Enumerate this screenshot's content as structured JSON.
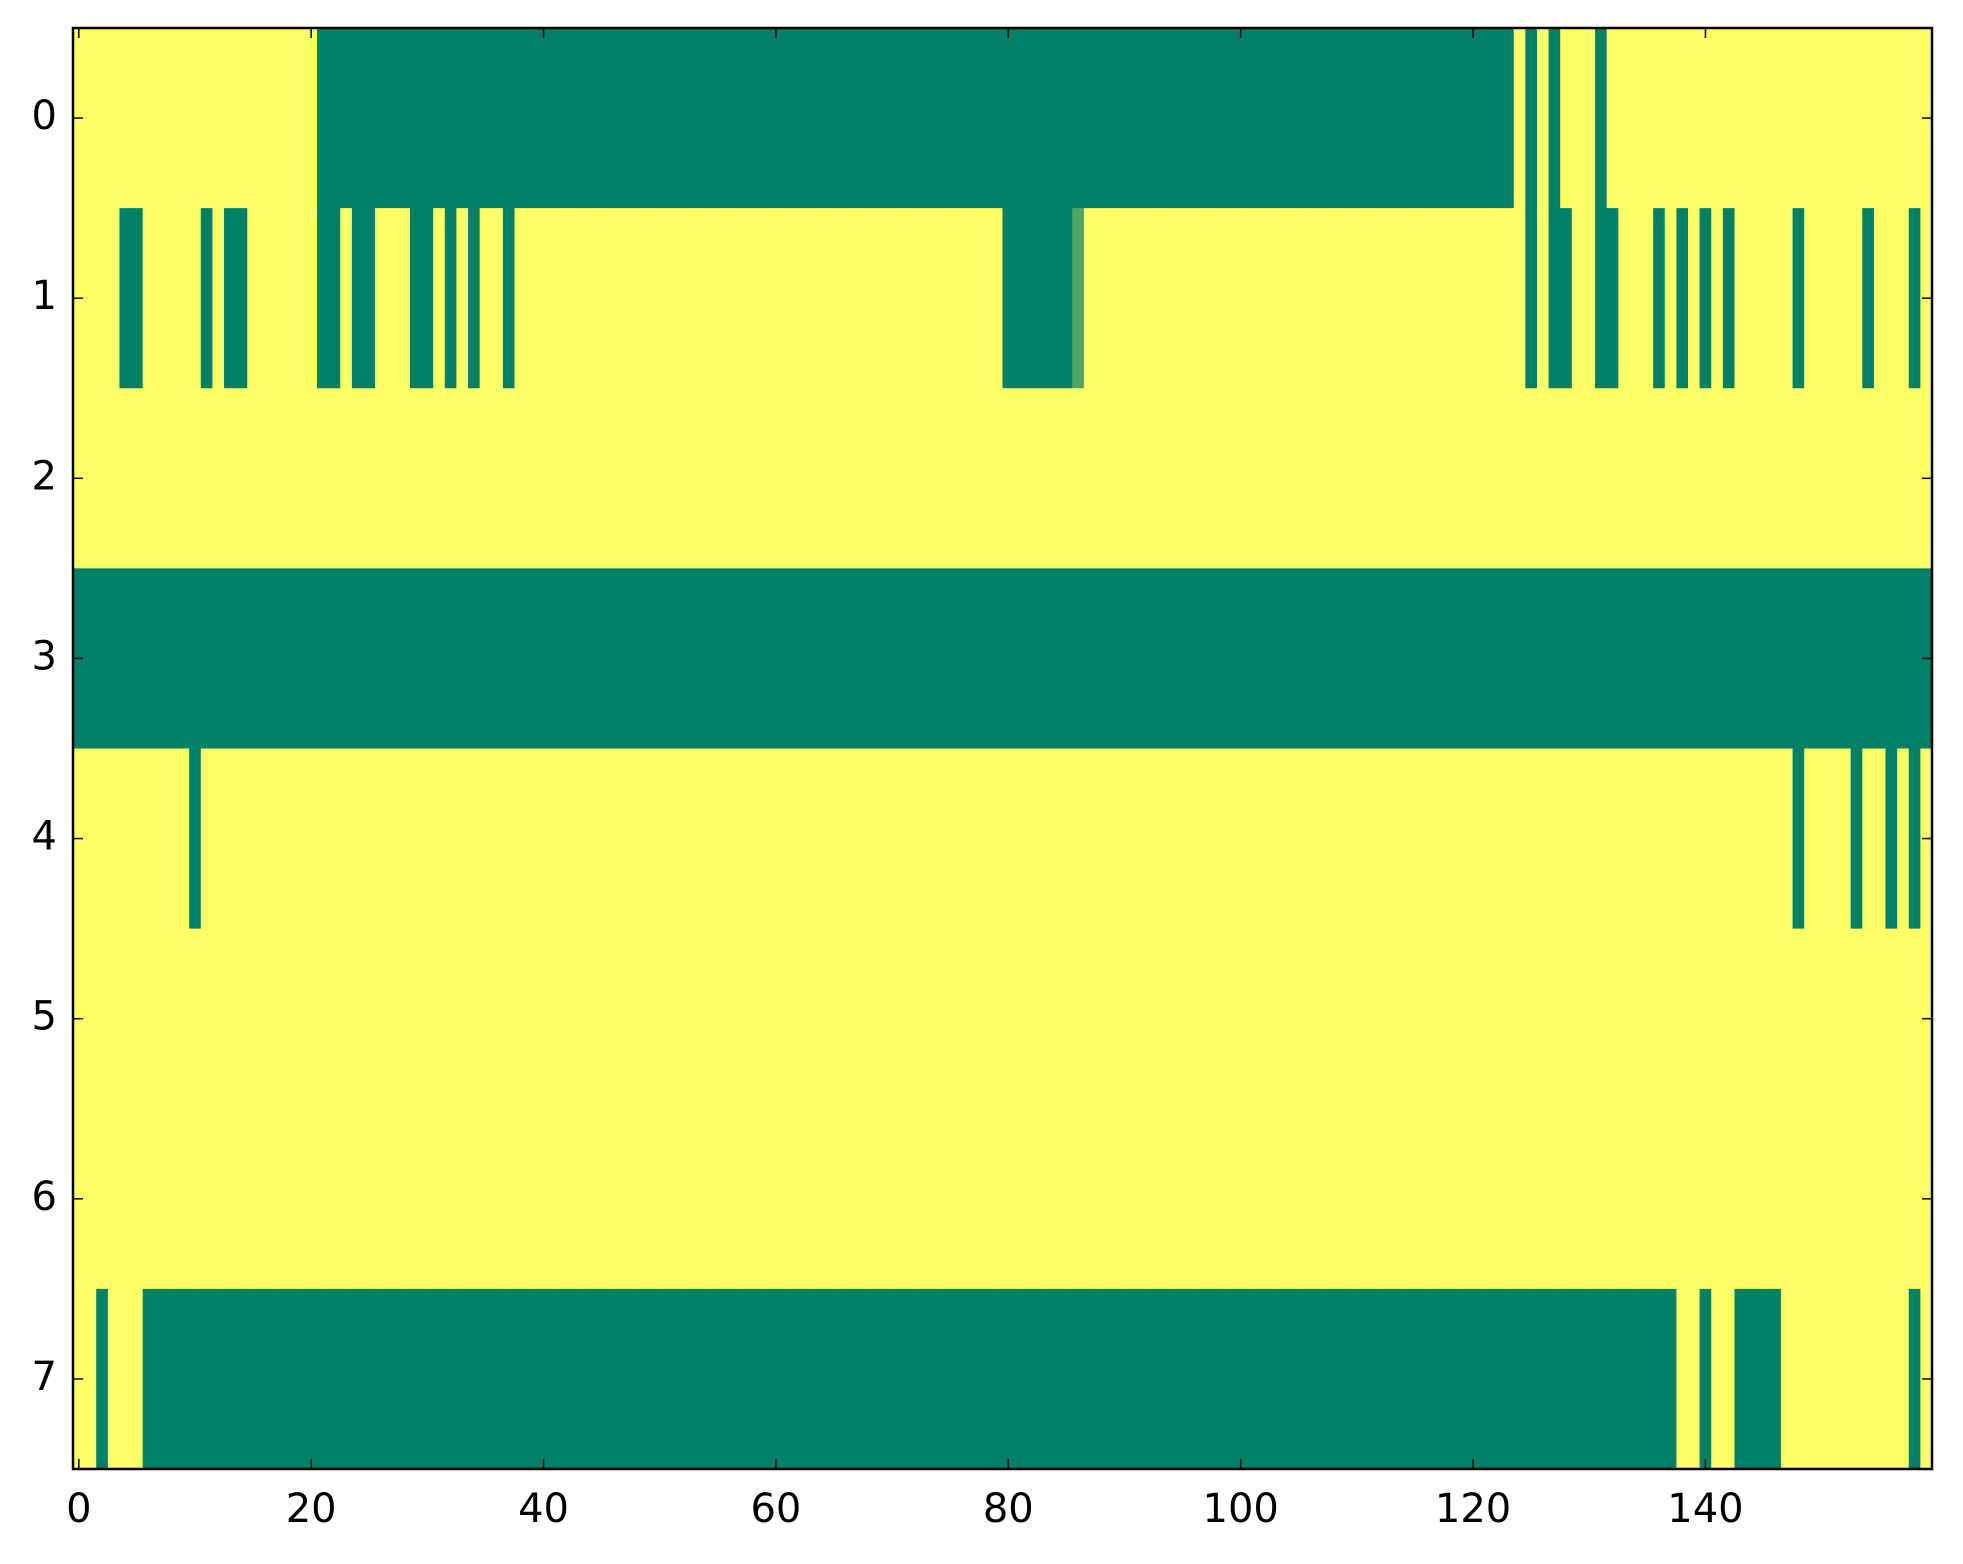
{
  "chart_data": {
    "type": "heatmap",
    "xlim": [
      -0.5,
      159.5
    ],
    "ylim": [
      7.5,
      -0.5
    ],
    "xticks": [
      0,
      20,
      40,
      60,
      80,
      100,
      120,
      140
    ],
    "yticks": [
      0,
      1,
      2,
      3,
      4,
      5,
      6,
      7
    ],
    "clim": [
      0,
      1
    ],
    "colors": [
      "#008066",
      "#ffff66"
    ],
    "z": [
      [
        1,
        1,
        1,
        1,
        1,
        1,
        1,
        1,
        1,
        1,
        1,
        1,
        1,
        1,
        1,
        1,
        1,
        1,
        1,
        1,
        1,
        0,
        0,
        0,
        0,
        0,
        0,
        0,
        0,
        0,
        0,
        0,
        0,
        0,
        0,
        0,
        0,
        0,
        0,
        0,
        0,
        0,
        0,
        0,
        0,
        0,
        0,
        0,
        0,
        0,
        0,
        0,
        0,
        0,
        0,
        0,
        0,
        0,
        0,
        0,
        0,
        0,
        0,
        0,
        0,
        0,
        0,
        0,
        0,
        0,
        0,
        0,
        0,
        0,
        0,
        0,
        0,
        0,
        0,
        0,
        0,
        0,
        0,
        0,
        0,
        0,
        0,
        0,
        0,
        0,
        0,
        0,
        0,
        0,
        0,
        0,
        0,
        0,
        0,
        0,
        0,
        0,
        0,
        0,
        0,
        0,
        0,
        0,
        0,
        0,
        0,
        0,
        0,
        0,
        0,
        0,
        0,
        0,
        0,
        0,
        0,
        0,
        0,
        0,
        1,
        0,
        1,
        0,
        1,
        1,
        1,
        0,
        1,
        1,
        1,
        1,
        1,
        1,
        1,
        1,
        1,
        1,
        1,
        1,
        1,
        1,
        1,
        1,
        1,
        1,
        1,
        1,
        1,
        1,
        1,
        1,
        1,
        1,
        1,
        1
      ],
      [
        1,
        1,
        1,
        1,
        0,
        0,
        1,
        1,
        1,
        1,
        1,
        0,
        1,
        0,
        0,
        1,
        1,
        1,
        1,
        1,
        1,
        0,
        0,
        1,
        0,
        0,
        1,
        1,
        1,
        0,
        0,
        1,
        0,
        1,
        0,
        1,
        1,
        0,
        1,
        1,
        1,
        1,
        1,
        1,
        1,
        1,
        1,
        1,
        1,
        1,
        1,
        1,
        1,
        1,
        1,
        1,
        1,
        1,
        1,
        1,
        1,
        1,
        1,
        1,
        1,
        1,
        1,
        1,
        1,
        1,
        1,
        1,
        1,
        1,
        1,
        1,
        1,
        1,
        1,
        1,
        0,
        0,
        0,
        0,
        0,
        0,
        0.3,
        1,
        1,
        1,
        1,
        1,
        1,
        1,
        1,
        1,
        1,
        1,
        1,
        1,
        1,
        1,
        1,
        1,
        1,
        1,
        1,
        1,
        1,
        1,
        1,
        1,
        1,
        1,
        1,
        1,
        1,
        1,
        1,
        1,
        1,
        1,
        1,
        1,
        1,
        0,
        1,
        0,
        0,
        1,
        1,
        0,
        0,
        1,
        1,
        1,
        0,
        1,
        0,
        1,
        0,
        1,
        0,
        1,
        1,
        1,
        1,
        1,
        0,
        1,
        1,
        1,
        1,
        1,
        0,
        1,
        1,
        1,
        0,
        1
      ],
      [
        1,
        1,
        1,
        1,
        1,
        1,
        1,
        1,
        1,
        1,
        1,
        1,
        1,
        1,
        1,
        1,
        1,
        1,
        1,
        1,
        1,
        1,
        1,
        1,
        1,
        1,
        1,
        1,
        1,
        1,
        1,
        1,
        1,
        1,
        1,
        1,
        1,
        1,
        1,
        1,
        1,
        1,
        1,
        1,
        1,
        1,
        1,
        1,
        1,
        1,
        1,
        1,
        1,
        1,
        1,
        1,
        1,
        1,
        1,
        1,
        1,
        1,
        1,
        1,
        1,
        1,
        1,
        1,
        1,
        1,
        1,
        1,
        1,
        1,
        1,
        1,
        1,
        1,
        1,
        1,
        1,
        1,
        1,
        1,
        1,
        1,
        1,
        1,
        1,
        1,
        1,
        1,
        1,
        1,
        1,
        1,
        1,
        1,
        1,
        1,
        1,
        1,
        1,
        1,
        1,
        1,
        1,
        1,
        1,
        1,
        1,
        1,
        1,
        1,
        1,
        1,
        1,
        1,
        1,
        1,
        1,
        1,
        1,
        1,
        1,
        1,
        1,
        1,
        1,
        1,
        1,
        1,
        1,
        1,
        1,
        1,
        1,
        1,
        1,
        1,
        1,
        1,
        1,
        1,
        1,
        1,
        1,
        1,
        1,
        1,
        1,
        1,
        1,
        1,
        1,
        1,
        1,
        1,
        1,
        1
      ],
      [
        0,
        0,
        0,
        0,
        0,
        0,
        0,
        0,
        0,
        0,
        0,
        0,
        0,
        0,
        0,
        0,
        0,
        0,
        0,
        0,
        0,
        0,
        0,
        0,
        0,
        0,
        0,
        0,
        0,
        0,
        0,
        0,
        0,
        0,
        0,
        0,
        0,
        0,
        0,
        0,
        0,
        0,
        0,
        0,
        0,
        0,
        0,
        0,
        0,
        0,
        0,
        0,
        0,
        0,
        0,
        0,
        0,
        0,
        0,
        0,
        0,
        0,
        0,
        0,
        0,
        0,
        0,
        0,
        0,
        0,
        0,
        0,
        0,
        0,
        0,
        0,
        0,
        0,
        0,
        0,
        0,
        0,
        0,
        0,
        0,
        0,
        0,
        0,
        0,
        0,
        0,
        0,
        0,
        0,
        0,
        0,
        0,
        0,
        0,
        0,
        0,
        0,
        0,
        0,
        0,
        0,
        0,
        0,
        0,
        0,
        0,
        0,
        0,
        0,
        0,
        0,
        0,
        0,
        0,
        0,
        0,
        0,
        0,
        0,
        0,
        0,
        0,
        0,
        0,
        0,
        0,
        0,
        0,
        0,
        0,
        0,
        0,
        0,
        0,
        0,
        0,
        0,
        0,
        0,
        0,
        0,
        0,
        0,
        0,
        0,
        0,
        0,
        0,
        0,
        0,
        0,
        0,
        0,
        0,
        0
      ],
      [
        1,
        1,
        1,
        1,
        1,
        1,
        1,
        1,
        1,
        1,
        0,
        1,
        1,
        1,
        1,
        1,
        1,
        1,
        1,
        1,
        1,
        1,
        1,
        1,
        1,
        1,
        1,
        1,
        1,
        1,
        1,
        1,
        1,
        1,
        1,
        1,
        1,
        1,
        1,
        1,
        1,
        1,
        1,
        1,
        1,
        1,
        1,
        1,
        1,
        1,
        1,
        1,
        1,
        1,
        1,
        1,
        1,
        1,
        1,
        1,
        1,
        1,
        1,
        1,
        1,
        1,
        1,
        1,
        1,
        1,
        1,
        1,
        1,
        1,
        1,
        1,
        1,
        1,
        1,
        1,
        1,
        1,
        1,
        1,
        1,
        1,
        1,
        1,
        1,
        1,
        1,
        1,
        1,
        1,
        1,
        1,
        1,
        1,
        1,
        1,
        1,
        1,
        1,
        1,
        1,
        1,
        1,
        1,
        1,
        1,
        1,
        1,
        1,
        1,
        1,
        1,
        1,
        1,
        1,
        1,
        1,
        1,
        1,
        1,
        1,
        1,
        1,
        1,
        1,
        1,
        1,
        1,
        1,
        1,
        1,
        1,
        1,
        1,
        1,
        1,
        1,
        1,
        1,
        1,
        1,
        1,
        1,
        1,
        0,
        1,
        1,
        1,
        1,
        0,
        1,
        1,
        0,
        1,
        0,
        1
      ],
      [
        1,
        1,
        1,
        1,
        1,
        1,
        1,
        1,
        1,
        1,
        1,
        1,
        1,
        1,
        1,
        1,
        1,
        1,
        1,
        1,
        1,
        1,
        1,
        1,
        1,
        1,
        1,
        1,
        1,
        1,
        1,
        1,
        1,
        1,
        1,
        1,
        1,
        1,
        1,
        1,
        1,
        1,
        1,
        1,
        1,
        1,
        1,
        1,
        1,
        1,
        1,
        1,
        1,
        1,
        1,
        1,
        1,
        1,
        1,
        1,
        1,
        1,
        1,
        1,
        1,
        1,
        1,
        1,
        1,
        1,
        1,
        1,
        1,
        1,
        1,
        1,
        1,
        1,
        1,
        1,
        1,
        1,
        1,
        1,
        1,
        1,
        1,
        1,
        1,
        1,
        1,
        1,
        1,
        1,
        1,
        1,
        1,
        1,
        1,
        1,
        1,
        1,
        1,
        1,
        1,
        1,
        1,
        1,
        1,
        1,
        1,
        1,
        1,
        1,
        1,
        1,
        1,
        1,
        1,
        1,
        1,
        1,
        1,
        1,
        1,
        1,
        1,
        1,
        1,
        1,
        1,
        1,
        1,
        1,
        1,
        1,
        1,
        1,
        1,
        1,
        1,
        1,
        1,
        1,
        1,
        1,
        1,
        1,
        1,
        1,
        1,
        1,
        1,
        1,
        1,
        1,
        1,
        1,
        1,
        1
      ],
      [
        1,
        1,
        1,
        1,
        1,
        1,
        1,
        1,
        1,
        1,
        1,
        1,
        1,
        1,
        1,
        1,
        1,
        1,
        1,
        1,
        1,
        1,
        1,
        1,
        1,
        1,
        1,
        1,
        1,
        1,
        1,
        1,
        1,
        1,
        1,
        1,
        1,
        1,
        1,
        1,
        1,
        1,
        1,
        1,
        1,
        1,
        1,
        1,
        1,
        1,
        1,
        1,
        1,
        1,
        1,
        1,
        1,
        1,
        1,
        1,
        1,
        1,
        1,
        1,
        1,
        1,
        1,
        1,
        1,
        1,
        1,
        1,
        1,
        1,
        1,
        1,
        1,
        1,
        1,
        1,
        1,
        1,
        1,
        1,
        1,
        1,
        1,
        1,
        1,
        1,
        1,
        1,
        1,
        1,
        1,
        1,
        1,
        1,
        1,
        1,
        1,
        1,
        1,
        1,
        1,
        1,
        1,
        1,
        1,
        1,
        1,
        1,
        1,
        1,
        1,
        1,
        1,
        1,
        1,
        1,
        1,
        1,
        1,
        1,
        1,
        1,
        1,
        1,
        1,
        1,
        1,
        1,
        1,
        1,
        1,
        1,
        1,
        1,
        1,
        1,
        1,
        1,
        1,
        1,
        1,
        1,
        1,
        1,
        1,
        1,
        1,
        1,
        1,
        1,
        1,
        1,
        1,
        1,
        1,
        1
      ],
      [
        1,
        1,
        0,
        1,
        1,
        1,
        0,
        0,
        0,
        0,
        0,
        0,
        0,
        0,
        0,
        0,
        0,
        0,
        0,
        0,
        0,
        0,
        0,
        0,
        0,
        0,
        0,
        0,
        0,
        0,
        0,
        0,
        0,
        0,
        0,
        0,
        0,
        0,
        0,
        0,
        0,
        0,
        0,
        0,
        0,
        0,
        0,
        0,
        0,
        0,
        0,
        0,
        0,
        0,
        0,
        0,
        0,
        0,
        0,
        0,
        0,
        0,
        0,
        0,
        0,
        0,
        0,
        0,
        0,
        0,
        0,
        0,
        0,
        0,
        0,
        0,
        0,
        0,
        0,
        0,
        0,
        0,
        0,
        0,
        0,
        0,
        0,
        0,
        0,
        0,
        0,
        0,
        0,
        0,
        0,
        0,
        0,
        0,
        0,
        0,
        0,
        0,
        0,
        0,
        0,
        0,
        0,
        0,
        0,
        0,
        0,
        0,
        0,
        0,
        0,
        0,
        0,
        0,
        0,
        0,
        0,
        0,
        0,
        0,
        0,
        0,
        0,
        0,
        0,
        0,
        0,
        0,
        0,
        0,
        0,
        0,
        0,
        0,
        1,
        1,
        0,
        1,
        1,
        0,
        0,
        0,
        0,
        1,
        1,
        1,
        1,
        1,
        1,
        1,
        1,
        1,
        1,
        1,
        0,
        1
      ]
    ]
  }
}
